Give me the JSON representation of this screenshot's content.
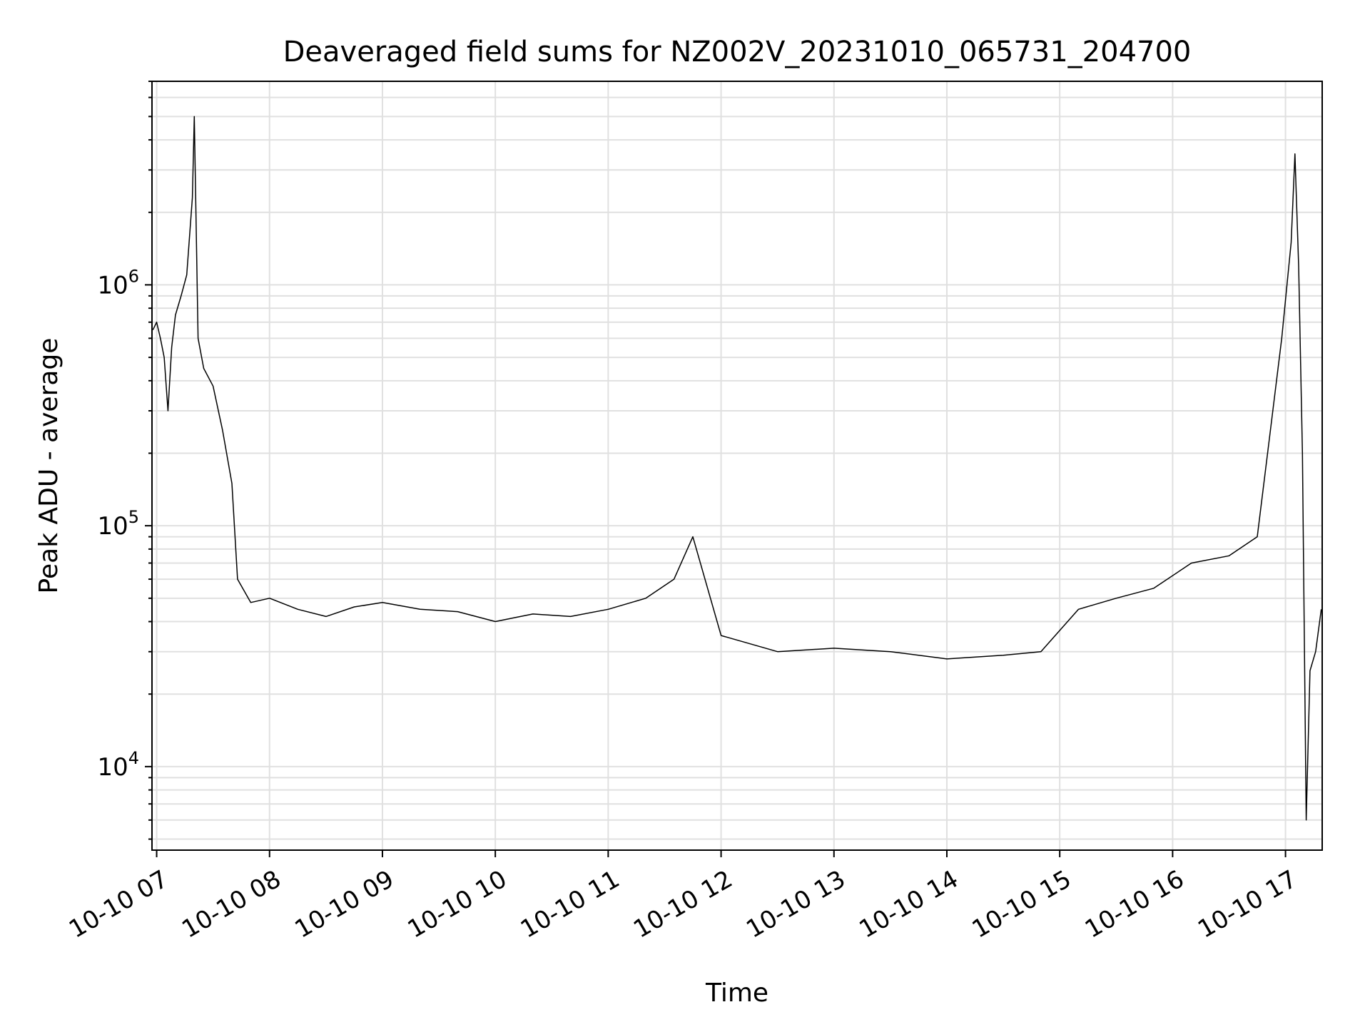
{
  "chart_data": {
    "type": "line",
    "title": "Deaveraged field sums for NZ002V_20231010_065731_204700",
    "xlabel": "Time",
    "ylabel": "Peak ADU - average",
    "y_scale": "log",
    "ylim": [
      4500,
      7000000
    ],
    "xlim": [
      "2023-10-10 06:57:31",
      "2023-10-10 17:19:30"
    ],
    "grid": true,
    "line_color": "#000000",
    "grid_color": "#e0e0e0",
    "x_ticks": [
      {
        "t": "2023-10-10 07:00",
        "label": "10-10 07"
      },
      {
        "t": "2023-10-10 08:00",
        "label": "10-10 08"
      },
      {
        "t": "2023-10-10 09:00",
        "label": "10-10 09"
      },
      {
        "t": "2023-10-10 10:00",
        "label": "10-10 10"
      },
      {
        "t": "2023-10-10 11:00",
        "label": "10-10 11"
      },
      {
        "t": "2023-10-10 12:00",
        "label": "10-10 12"
      },
      {
        "t": "2023-10-10 13:00",
        "label": "10-10 13"
      },
      {
        "t": "2023-10-10 14:00",
        "label": "10-10 14"
      },
      {
        "t": "2023-10-10 15:00",
        "label": "10-10 15"
      },
      {
        "t": "2023-10-10 16:00",
        "label": "10-10 16"
      },
      {
        "t": "2023-10-10 17:00",
        "label": "10-10 17"
      }
    ],
    "y_ticks": [
      {
        "value": 10000,
        "base": "10",
        "exp": "4"
      },
      {
        "value": 100000,
        "base": "10",
        "exp": "5"
      },
      {
        "value": 1000000,
        "base": "10",
        "exp": "6"
      }
    ],
    "series": [
      {
        "points": [
          [
            "2023-10-10 06:58",
            650000
          ],
          [
            "2023-10-10 07:00",
            700000
          ],
          [
            "2023-10-10 07:02",
            600000
          ],
          [
            "2023-10-10 07:04",
            500000
          ],
          [
            "2023-10-10 07:06",
            300000
          ],
          [
            "2023-10-10 07:08",
            550000
          ],
          [
            "2023-10-10 07:10",
            750000
          ],
          [
            "2023-10-10 07:13",
            900000
          ],
          [
            "2023-10-10 07:16",
            1100000
          ],
          [
            "2023-10-10 07:19",
            2300000
          ],
          [
            "2023-10-10 07:20",
            5000000
          ],
          [
            "2023-10-10 07:22",
            600000
          ],
          [
            "2023-10-10 07:25",
            450000
          ],
          [
            "2023-10-10 07:30",
            380000
          ],
          [
            "2023-10-10 07:35",
            250000
          ],
          [
            "2023-10-10 07:40",
            150000
          ],
          [
            "2023-10-10 07:43",
            60000
          ],
          [
            "2023-10-10 07:50",
            48000
          ],
          [
            "2023-10-10 08:00",
            50000
          ],
          [
            "2023-10-10 08:15",
            45000
          ],
          [
            "2023-10-10 08:30",
            42000
          ],
          [
            "2023-10-10 08:45",
            46000
          ],
          [
            "2023-10-10 09:00",
            48000
          ],
          [
            "2023-10-10 09:20",
            45000
          ],
          [
            "2023-10-10 09:40",
            44000
          ],
          [
            "2023-10-10 10:00",
            40000
          ],
          [
            "2023-10-10 10:20",
            43000
          ],
          [
            "2023-10-10 10:40",
            42000
          ],
          [
            "2023-10-10 11:00",
            45000
          ],
          [
            "2023-10-10 11:20",
            50000
          ],
          [
            "2023-10-10 11:35",
            60000
          ],
          [
            "2023-10-10 11:45",
            90000
          ],
          [
            "2023-10-10 12:00",
            35000
          ],
          [
            "2023-10-10 12:30",
            30000
          ],
          [
            "2023-10-10 13:00",
            31000
          ],
          [
            "2023-10-10 13:30",
            30000
          ],
          [
            "2023-10-10 14:00",
            28000
          ],
          [
            "2023-10-10 14:30",
            29000
          ],
          [
            "2023-10-10 14:50",
            30000
          ],
          [
            "2023-10-10 15:10",
            45000
          ],
          [
            "2023-10-10 15:30",
            50000
          ],
          [
            "2023-10-10 15:50",
            55000
          ],
          [
            "2023-10-10 16:10",
            70000
          ],
          [
            "2023-10-10 16:30",
            75000
          ],
          [
            "2023-10-10 16:45",
            90000
          ],
          [
            "2023-10-10 16:52",
            250000
          ],
          [
            "2023-10-10 16:58",
            600000
          ],
          [
            "2023-10-10 17:03",
            1500000
          ],
          [
            "2023-10-10 17:05",
            3500000
          ],
          [
            "2023-10-10 17:07",
            1200000
          ],
          [
            "2023-10-10 17:09",
            200000
          ],
          [
            "2023-10-10 17:11",
            6000
          ],
          [
            "2023-10-10 17:13",
            25000
          ],
          [
            "2023-10-10 17:16",
            30000
          ],
          [
            "2023-10-10 17:19",
            45000
          ]
        ]
      }
    ]
  }
}
